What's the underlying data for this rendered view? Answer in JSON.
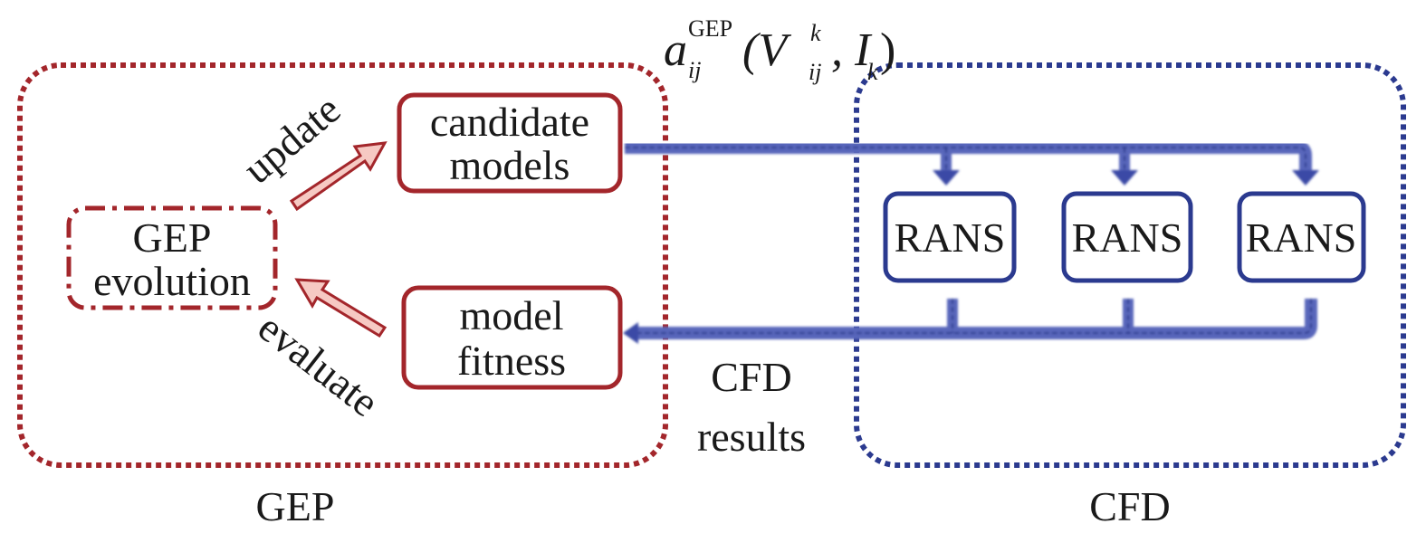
{
  "colors": {
    "gep": "#a3262b",
    "cfd": "#2b3a8f",
    "blue_arrow": "#5866bb",
    "pink_arrow": "#f6c9c3"
  },
  "formula": {
    "base": "a",
    "base_sub": "ij",
    "base_sup": "GEP",
    "open": "(V",
    "v_sub": "ij",
    "v_sup": "k",
    "sep": ", I",
    "i_sub": "k",
    "close": ")"
  },
  "gep": {
    "label": "GEP",
    "evolution": [
      "GEP",
      "evolution"
    ],
    "candidate": [
      "candidate",
      "models"
    ],
    "fitness": [
      "model",
      "fitness"
    ],
    "update": "update",
    "evaluate": "evaluate"
  },
  "cfd": {
    "label": "CFD",
    "rans": [
      "RANS",
      "RANS",
      "RANS"
    ],
    "results": [
      "CFD",
      "results"
    ]
  }
}
